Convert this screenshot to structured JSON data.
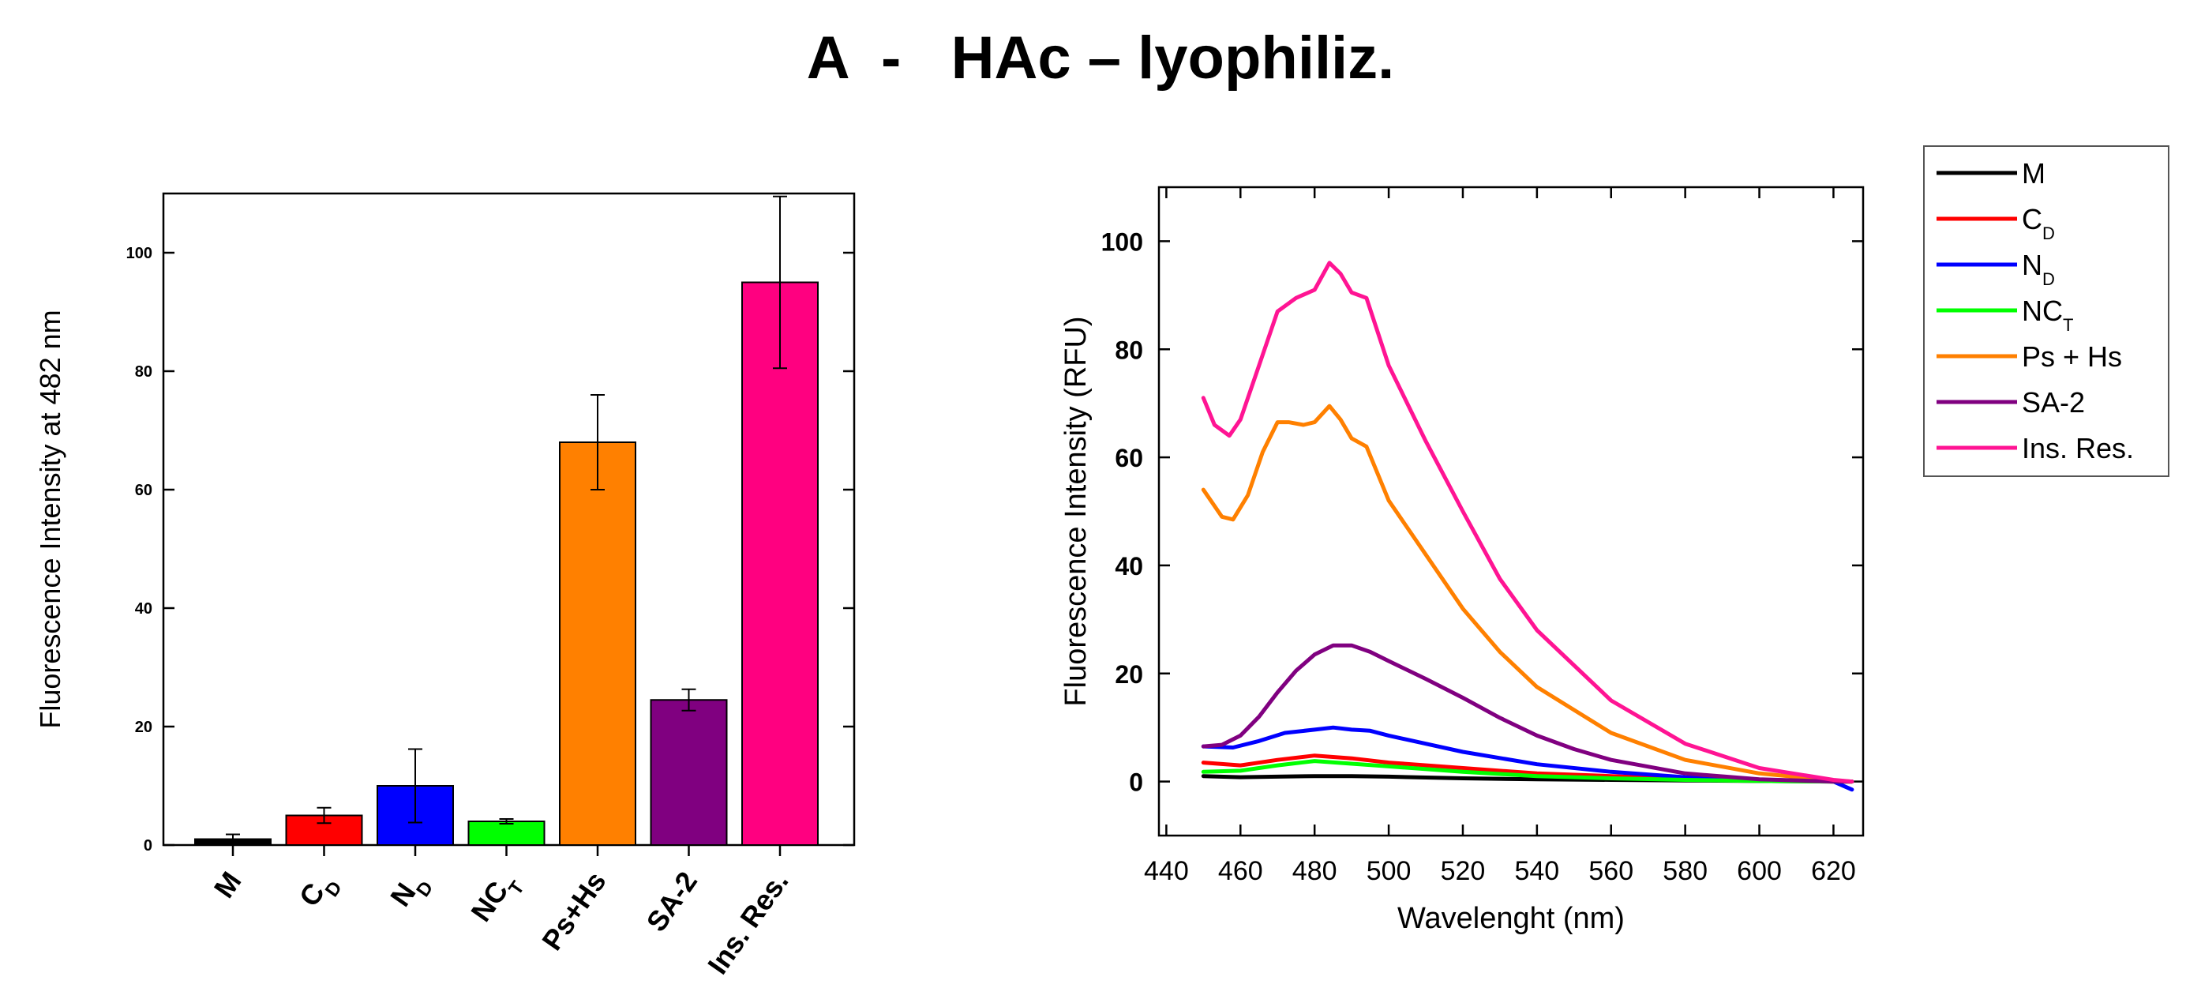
{
  "page": {
    "title": "A  -   HAc – lyophiliz."
  },
  "chart_data": [
    {
      "type": "bar",
      "ylabel": "Fluorescence Intensity at 482 nm",
      "ylim": [
        0,
        110
      ],
      "yticks": [
        "0",
        "20",
        "40",
        "60",
        "80",
        "100"
      ],
      "categories": [
        {
          "label": "M",
          "sub": ""
        },
        {
          "label": "C",
          "sub": "D"
        },
        {
          "label": "N",
          "sub": "D"
        },
        {
          "label": "NC",
          "sub": "T"
        },
        {
          "label": "Ps+Hs",
          "sub": ""
        },
        {
          "label": "SA-2",
          "sub": ""
        },
        {
          "label": "Ins. Res.",
          "sub": ""
        }
      ],
      "values": [
        1.0,
        5.0,
        10.0,
        4.0,
        68.0,
        24.5,
        95.0
      ],
      "errors": [
        0.8,
        1.3,
        6.2,
        0.4,
        8.0,
        1.8,
        14.5
      ],
      "colors": [
        "#000000",
        "#ff0000",
        "#0000ff",
        "#00ff00",
        "#ff8000",
        "#800080",
        "#ff0080"
      ]
    },
    {
      "type": "line",
      "xlabel": "Wavelenght (nm)",
      "ylabel": "Fluorescence Intensity (RFU)",
      "xlim": [
        438,
        628
      ],
      "ylim": [
        -10,
        110
      ],
      "xticks": [
        "440",
        "460",
        "480",
        "500",
        "520",
        "540",
        "560",
        "580",
        "600",
        "620"
      ],
      "yticks": [
        "0",
        "20",
        "40",
        "60",
        "80",
        "100"
      ],
      "legend": "outside-right",
      "series": [
        {
          "name": "M",
          "sub": "",
          "color": "#000000",
          "x": [
            450,
            460,
            470,
            480,
            490,
            500,
            520,
            540,
            560,
            580,
            600,
            620,
            625
          ],
          "y": [
            1.0,
            0.8,
            0.9,
            1.0,
            1.0,
            0.9,
            0.6,
            0.4,
            0.3,
            0.2,
            0.1,
            0.0,
            0.0
          ]
        },
        {
          "name": "C",
          "sub": "D",
          "color": "#ff0000",
          "x": [
            450,
            460,
            470,
            480,
            490,
            500,
            520,
            540,
            560,
            580,
            600,
            620,
            625
          ],
          "y": [
            3.5,
            3.0,
            4.0,
            4.8,
            4.3,
            3.5,
            2.5,
            1.5,
            1.0,
            0.5,
            0.2,
            0.0,
            0.0
          ]
        },
        {
          "name": "N",
          "sub": "D",
          "color": "#0000ff",
          "x": [
            450,
            458,
            465,
            472,
            480,
            485,
            490,
            495,
            500,
            510,
            520,
            540,
            560,
            580,
            600,
            620,
            625
          ],
          "y": [
            6.5,
            6.3,
            7.5,
            9.0,
            9.6,
            10.0,
            9.6,
            9.4,
            8.5,
            7.0,
            5.5,
            3.2,
            1.8,
            0.8,
            0.3,
            0.0,
            -1.5
          ]
        },
        {
          "name": "NC",
          "sub": "T",
          "color": "#00ff00",
          "x": [
            450,
            460,
            470,
            480,
            490,
            500,
            520,
            540,
            560,
            580,
            600,
            620,
            625
          ],
          "y": [
            1.8,
            2.0,
            3.0,
            3.8,
            3.3,
            2.8,
            1.8,
            1.0,
            0.6,
            0.3,
            0.1,
            0.0,
            0.0
          ]
        },
        {
          "name": "Ps + Hs",
          "sub": "",
          "color": "#ff8000",
          "x": [
            450,
            455,
            458,
            462,
            466,
            470,
            473,
            477,
            480,
            484,
            487,
            490,
            494,
            500,
            510,
            520,
            530,
            540,
            560,
            580,
            600,
            620,
            625
          ],
          "y": [
            54,
            49,
            48.5,
            53,
            61,
            66.5,
            66.5,
            66,
            66.5,
            69.5,
            67,
            63.5,
            62,
            52,
            42,
            32,
            24,
            17.5,
            9,
            4,
            1.5,
            0.2,
            0.0
          ]
        },
        {
          "name": "SA-2",
          "sub": "",
          "color": "#800080",
          "x": [
            450,
            455,
            460,
            465,
            470,
            475,
            480,
            485,
            490,
            495,
            500,
            510,
            520,
            530,
            540,
            550,
            560,
            580,
            600,
            620,
            625
          ],
          "y": [
            6.5,
            6.8,
            8.5,
            12,
            16.5,
            20.5,
            23.5,
            25.2,
            25.2,
            24,
            22.3,
            19,
            15.5,
            11.8,
            8.5,
            6,
            4,
            1.5,
            0.4,
            0.0,
            0.0
          ]
        },
        {
          "name": "Ins. Res.",
          "sub": "",
          "color": "#ff1493",
          "x": [
            450,
            453,
            457,
            460,
            465,
            470,
            475,
            480,
            484,
            487,
            490,
            494,
            500,
            510,
            520,
            530,
            540,
            560,
            580,
            600,
            620,
            625
          ],
          "y": [
            71,
            66,
            64,
            67,
            77,
            87,
            89.5,
            91,
            96,
            94,
            90.5,
            89.5,
            77,
            63,
            50,
            37.5,
            28,
            15,
            7,
            2.5,
            0.3,
            0.0
          ]
        }
      ]
    }
  ]
}
